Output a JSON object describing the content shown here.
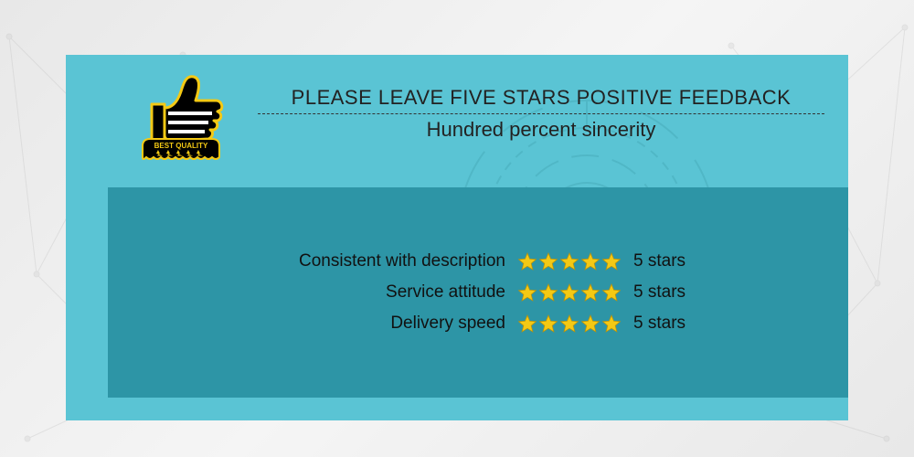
{
  "colors": {
    "panel_bg": "#5ac4d4",
    "ratings_bg": "#2d95a6",
    "star_fill": "#f4c914",
    "star_stroke": "#b8940d",
    "text": "#222222",
    "badge_black": "#000000",
    "badge_gold": "#f4c914",
    "badge_white": "#ffffff"
  },
  "badge": {
    "banner_text": "BEST QUALITY",
    "glyph": "thumbs-up",
    "stars": 5
  },
  "header": {
    "title": "PLEASE LEAVE FIVE STARS POSITIVE FEEDBACK",
    "subtitle": "Hundred percent sincerity",
    "title_fontsize": 22,
    "subtitle_fontsize": 22
  },
  "ratings": {
    "items": [
      {
        "label": "Consistent with description",
        "stars": 5,
        "count_text": "5 stars"
      },
      {
        "label": "Service attitude",
        "stars": 5,
        "count_text": "5 stars"
      },
      {
        "label": "Delivery speed",
        "stars": 5,
        "count_text": "5 stars"
      }
    ]
  }
}
